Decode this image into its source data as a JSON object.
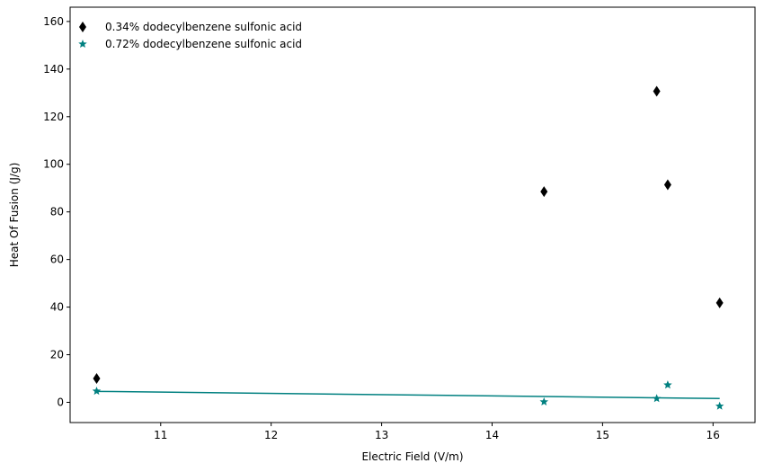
{
  "chart_data": {
    "type": "scatter",
    "title": "",
    "xlabel": "Electric Field (V/m)",
    "ylabel": "Heat Of Fusion (J/g)",
    "xlim": [
      10.18,
      16.38
    ],
    "ylim": [
      -8.5,
      166
    ],
    "xticks": [
      11,
      12,
      13,
      14,
      15,
      16
    ],
    "yticks": [
      0,
      20,
      40,
      60,
      80,
      100,
      120,
      140,
      160
    ],
    "grid": false,
    "legend_position": "top-left",
    "series": [
      {
        "name": "0.34% dodecylbenzene sulfonic acid",
        "marker": "thin-diamond",
        "color": "#000000",
        "points": [
          {
            "x": 10.42,
            "y": 10.0
          },
          {
            "x": 14.47,
            "y": 88.5
          },
          {
            "x": 15.49,
            "y": 130.7
          },
          {
            "x": 15.59,
            "y": 91.4
          },
          {
            "x": 16.06,
            "y": 41.8
          }
        ]
      },
      {
        "name": "0.72% dodecylbenzene sulfonic acid",
        "marker": "star",
        "color": "#008080",
        "points": [
          {
            "x": 10.42,
            "y": 4.7
          },
          {
            "x": 14.47,
            "y": 0.2
          },
          {
            "x": 15.49,
            "y": 1.6
          },
          {
            "x": 15.59,
            "y": 7.3
          },
          {
            "x": 16.06,
            "y": -1.6
          }
        ],
        "trendline": {
          "x": [
            10.42,
            16.06
          ],
          "y": [
            4.6,
            1.6
          ]
        }
      }
    ]
  }
}
